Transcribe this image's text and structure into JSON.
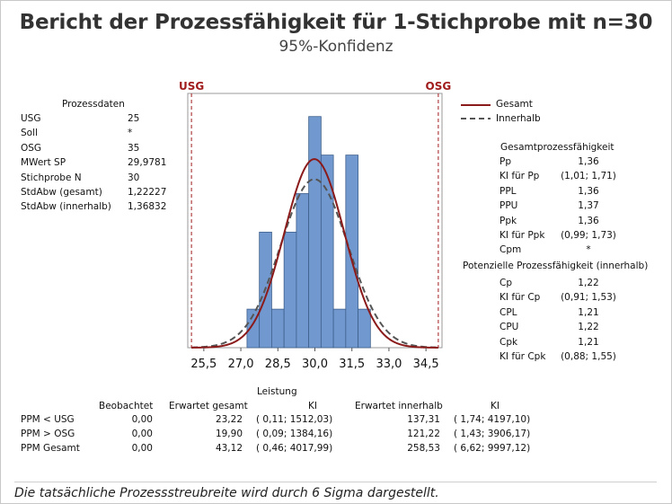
{
  "title": "Bericht der Prozessfähigkeit für 1-Stichprobe mit n=30",
  "subtitle": "95%-Konfidenz",
  "process_data": {
    "heading": "Prozessdaten",
    "rows": [
      {
        "label": "USG",
        "value": "25"
      },
      {
        "label": "Soll",
        "value": "*"
      },
      {
        "label": "OSG",
        "value": "35"
      },
      {
        "label": "MWert SP",
        "value": "29,9781"
      },
      {
        "label": "Stichprobe N",
        "value": "30"
      },
      {
        "label": "StdAbw (gesamt)",
        "value": "1,22227"
      },
      {
        "label": "StdAbw (innerhalb)",
        "value": "1,36832"
      }
    ]
  },
  "legend": {
    "overall": "Gesamt",
    "within": "Innerhalb"
  },
  "overall_capability": {
    "heading": "Gesamtprozessfähigkeit",
    "rows": [
      {
        "label": "Pp",
        "value": "1,36"
      },
      {
        "label": "KI für Pp",
        "value": "(1,01; 1,71)"
      },
      {
        "label": "PPL",
        "value": "1,36"
      },
      {
        "label": "PPU",
        "value": "1,37"
      },
      {
        "label": "Ppk",
        "value": "1,36"
      },
      {
        "label": "KI für Ppk",
        "value": "(0,99; 1,73)"
      },
      {
        "label": "Cpm",
        "value": "*"
      }
    ]
  },
  "potential_capability": {
    "heading": "Potenzielle Prozessfähigkeit (innerhalb)",
    "rows": [
      {
        "label": "Cp",
        "value": "1,22"
      },
      {
        "label": "KI für Cp",
        "value": "(0,91; 1,53)"
      },
      {
        "label": "CPL",
        "value": "1,21"
      },
      {
        "label": "CPU",
        "value": "1,22"
      },
      {
        "label": "Cpk",
        "value": "1,21"
      },
      {
        "label": "KI für Cpk",
        "value": "(0,88; 1,55)"
      }
    ]
  },
  "performance": {
    "heading": "Leistung",
    "columns": [
      "Beobachtet",
      "Erwartet gesamt",
      "KI",
      "Erwartet innerhalb",
      "KI"
    ],
    "rows": [
      {
        "label": "PPM < USG",
        "observed": "0,00",
        "exp_overall": "23,22",
        "ci_overall": "( 0,11; 1512,03)",
        "exp_within": "137,31",
        "ci_within": "( 1,74; 4197,10)"
      },
      {
        "label": "PPM > OSG",
        "observed": "0,00",
        "exp_overall": "19,90",
        "ci_overall": "( 0,09; 1384,16)",
        "exp_within": "121,22",
        "ci_within": "( 1,43; 3906,17)"
      },
      {
        "label": "PPM Gesamt",
        "observed": "0,00",
        "exp_overall": "43,12",
        "ci_overall": "( 0,46; 4017,99)",
        "exp_within": "258,53",
        "ci_within": "( 6,62; 9997,12)"
      }
    ]
  },
  "footer": "Die tatsächliche Prozessstreubreite wird durch 6 Sigma dargestellt.",
  "chart_data": {
    "type": "bar",
    "subtype": "capability histogram",
    "bin_width": 0.5,
    "bins": [
      {
        "x": 27.5,
        "count": 1
      },
      {
        "x": 28.0,
        "count": 3
      },
      {
        "x": 28.5,
        "count": 1
      },
      {
        "x": 29.0,
        "count": 3
      },
      {
        "x": 29.5,
        "count": 4
      },
      {
        "x": 30.0,
        "count": 6
      },
      {
        "x": 30.5,
        "count": 5
      },
      {
        "x": 31.0,
        "count": 1
      },
      {
        "x": 31.5,
        "count": 5
      },
      {
        "x": 32.0,
        "count": 1
      }
    ],
    "xticks": [
      25.5,
      27.0,
      28.5,
      30.0,
      31.5,
      33.0,
      34.5
    ],
    "xtick_labels": [
      "25,5",
      "27,0",
      "28,5",
      "30,0",
      "31,5",
      "33,0",
      "34,5"
    ],
    "xlim": [
      24.85,
      35.15
    ],
    "ylim": [
      0,
      6.6
    ],
    "lsl": 25,
    "usl": 35,
    "lsl_label": "USG",
    "usl_label": "OSG",
    "mean": 29.9781,
    "sd_overall": 1.22227,
    "sd_within": 1.36832,
    "n": 30,
    "colors": {
      "bar": "#7199cf",
      "bar_edge": "#3e5f8c",
      "overall": "#8b1a1a",
      "within": "#555555",
      "spec": "#a01c1c"
    }
  }
}
